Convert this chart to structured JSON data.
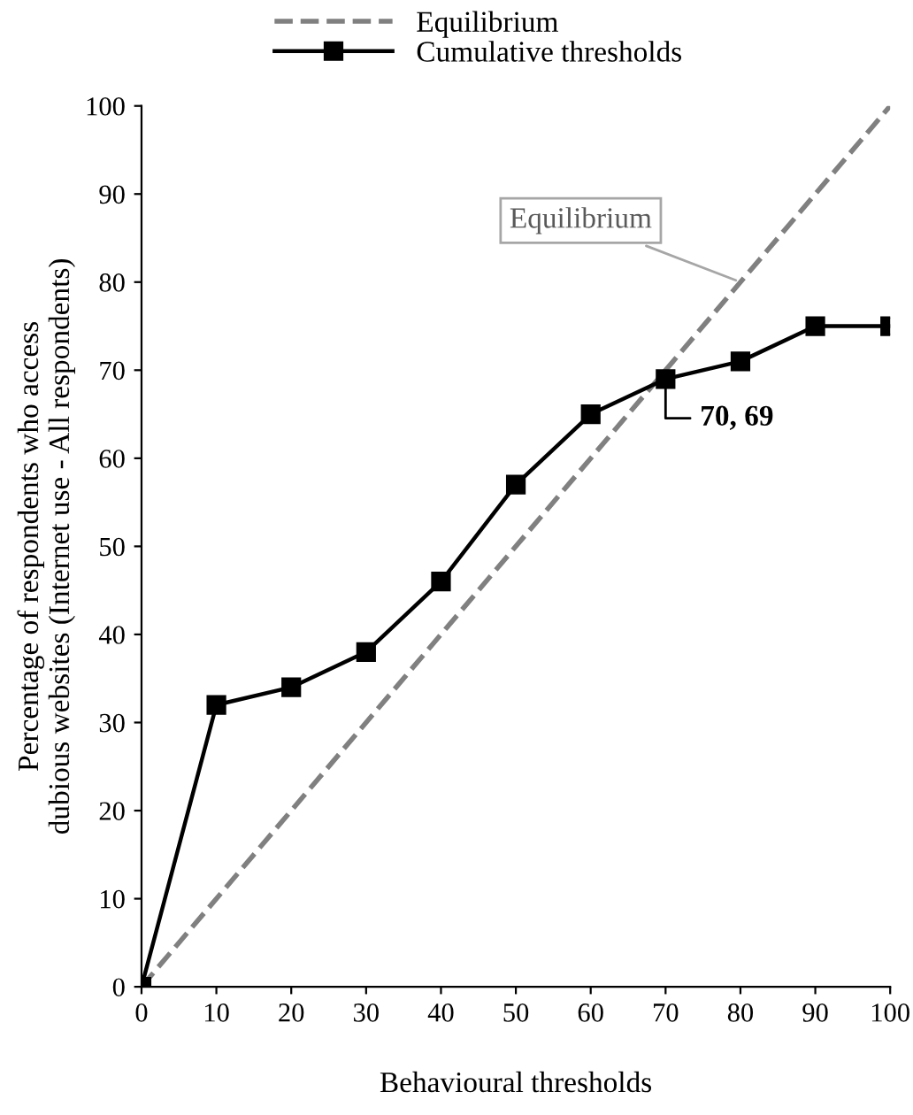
{
  "chart_data": {
    "type": "line",
    "xlabel": "Behavioural thresholds",
    "ylabel": "Percentage of respondents who access\ndubious websites (Internet use - All respondents)",
    "x": [
      0,
      10,
      20,
      30,
      40,
      50,
      60,
      70,
      80,
      90,
      100
    ],
    "series": [
      {
        "name": "Equilibrium",
        "color": "#808080",
        "x": [
          0,
          100
        ],
        "values": [
          0,
          100
        ],
        "line_style": "dashed",
        "marker": "none"
      },
      {
        "name": "Cumulative thresholds",
        "color": "#000000",
        "values": [
          0,
          32,
          34,
          38,
          46,
          57,
          65,
          69,
          71,
          75,
          75
        ],
        "line_style": "solid",
        "marker": "square"
      }
    ],
    "xlim": [
      0,
      100
    ],
    "xticks": [
      0,
      10,
      20,
      30,
      40,
      50,
      60,
      70,
      80,
      90,
      100
    ],
    "ylim": [
      0,
      100
    ],
    "yticks": [
      0,
      10,
      20,
      30,
      40,
      50,
      60,
      70,
      80,
      90,
      100
    ],
    "annotations": [
      {
        "text": "Equilibrium",
        "x": 80,
        "y": 80
      },
      {
        "text": "70, 69",
        "x": 70,
        "y": 69
      }
    ],
    "grid": false,
    "legend": "top"
  }
}
